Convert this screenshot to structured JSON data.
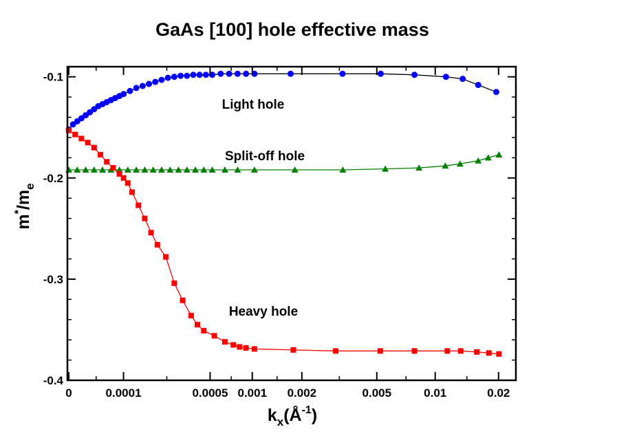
{
  "chart_data": {
    "type": "line",
    "title": "GaAs [100] hole effective mass",
    "xlabel": {
      "base": "k",
      "sub": "x",
      "paren_open": "(",
      "unit": "Å",
      "sup": "-1",
      "paren_close": ")"
    },
    "ylabel": {
      "base": "m",
      "sup": "*",
      "slash": "/m",
      "sub": "e"
    },
    "ylim": [
      -0.4,
      -0.09
    ],
    "y_ticks": [
      {
        "value": -0.1,
        "label": "-0.1"
      },
      {
        "value": -0.2,
        "label": "-0.2"
      },
      {
        "value": -0.3,
        "label": "-0.3"
      },
      {
        "value": -0.4,
        "label": "-0.4"
      }
    ],
    "x_scale_note": "nonlinear (compressed) k_x axis; data indexed by scaled position 0..1 between first and last tick",
    "x_ticks": [
      {
        "label": "0",
        "t": 0.0
      },
      {
        "label": "0.0001",
        "t": 0.1245
      },
      {
        "label": "0.0005",
        "t": 0.3215
      },
      {
        "label": "0.001",
        "t": 0.4175
      },
      {
        "label": "0.002",
        "t": 0.5303
      },
      {
        "label": "0.005",
        "t": 0.7008
      },
      {
        "label": "0.01",
        "t": 0.8337
      },
      {
        "label": "0.02",
        "t": 0.9778
      }
    ],
    "series": [
      {
        "name": "Light hole",
        "color": "#0000ff",
        "line_color": "#000000",
        "marker": "circle",
        "label_text": "Light hole",
        "x": [
          0,
          0.0096,
          0.0192,
          0.0288,
          0.0384,
          0.048,
          0.0576,
          0.0672,
          0.0768,
          0.0864,
          0.096,
          0.1056,
          0.1152,
          0.1248,
          0.1392,
          0.1536,
          0.168,
          0.1824,
          0.1968,
          0.2112,
          0.2256,
          0.24,
          0.2544,
          0.2688,
          0.2832,
          0.2976,
          0.312,
          0.3264,
          0.3456,
          0.3648,
          0.384,
          0.4032,
          0.4224,
          0.5047,
          0.6228,
          0.7096,
          0.7865,
          0.8581,
          0.8962,
          0.9314,
          0.9726
        ],
        "y": [
          -0.152,
          -0.147,
          -0.144,
          -0.141,
          -0.138,
          -0.135,
          -0.132,
          -0.129,
          -0.127,
          -0.125,
          -0.123,
          -0.121,
          -0.119,
          -0.117,
          -0.114,
          -0.111,
          -0.109,
          -0.107,
          -0.105,
          -0.103,
          -0.101,
          -0.1,
          -0.099,
          -0.099,
          -0.098,
          -0.098,
          -0.098,
          -0.098,
          -0.097,
          -0.097,
          -0.097,
          -0.097,
          -0.097,
          -0.097,
          -0.097,
          -0.097,
          -0.098,
          -0.1,
          -0.102,
          -0.108,
          -0.115
        ]
      },
      {
        "name": "Split-off hole",
        "color": "#008000",
        "line_color": "#008000",
        "marker": "triangle",
        "label_text": "Split-off hole",
        "x": [
          0,
          0.0192,
          0.0384,
          0.0576,
          0.0768,
          0.096,
          0.1152,
          0.1344,
          0.1536,
          0.1728,
          0.192,
          0.2112,
          0.2304,
          0.2496,
          0.2688,
          0.288,
          0.3072,
          0.3264,
          0.3552,
          0.384,
          0.4224,
          0.5143,
          0.6235,
          0.7201,
          0.7968,
          0.8566,
          0.8902,
          0.9314,
          0.9543,
          0.9787
        ],
        "y": [
          -0.192,
          -0.192,
          -0.192,
          -0.192,
          -0.192,
          -0.192,
          -0.192,
          -0.192,
          -0.192,
          -0.192,
          -0.192,
          -0.192,
          -0.192,
          -0.192,
          -0.192,
          -0.192,
          -0.192,
          -0.192,
          -0.192,
          -0.192,
          -0.192,
          -0.192,
          -0.192,
          -0.191,
          -0.19,
          -0.188,
          -0.186,
          -0.183,
          -0.18,
          -0.177
        ]
      },
      {
        "name": "Heavy hole",
        "color": "#ff0000",
        "line_color": "#ff0000",
        "marker": "square",
        "label_text": "Heavy hole",
        "x": [
          0,
          0.0144,
          0.0288,
          0.0432,
          0.0576,
          0.072,
          0.0864,
          0.1008,
          0.1152,
          0.1248,
          0.1344,
          0.144,
          0.1584,
          0.1728,
          0.1872,
          0.2016,
          0.2208,
          0.24,
          0.2592,
          0.2784,
          0.2928,
          0.3072,
          0.3312,
          0.3552,
          0.3744,
          0.3888,
          0.4032,
          0.4224,
          0.5109,
          0.6074,
          0.7087,
          0.7865,
          0.8612,
          0.8917,
          0.9284,
          0.9558,
          0.9787
        ],
        "y": [
          -0.153,
          -0.157,
          -0.161,
          -0.165,
          -0.17,
          -0.177,
          -0.184,
          -0.19,
          -0.196,
          -0.2,
          -0.205,
          -0.214,
          -0.227,
          -0.24,
          -0.254,
          -0.266,
          -0.278,
          -0.304,
          -0.321,
          -0.336,
          -0.345,
          -0.351,
          -0.356,
          -0.362,
          -0.365,
          -0.367,
          -0.368,
          -0.369,
          -0.37,
          -0.371,
          -0.371,
          -0.371,
          -0.371,
          -0.371,
          -0.372,
          -0.373,
          -0.374
        ]
      }
    ]
  }
}
